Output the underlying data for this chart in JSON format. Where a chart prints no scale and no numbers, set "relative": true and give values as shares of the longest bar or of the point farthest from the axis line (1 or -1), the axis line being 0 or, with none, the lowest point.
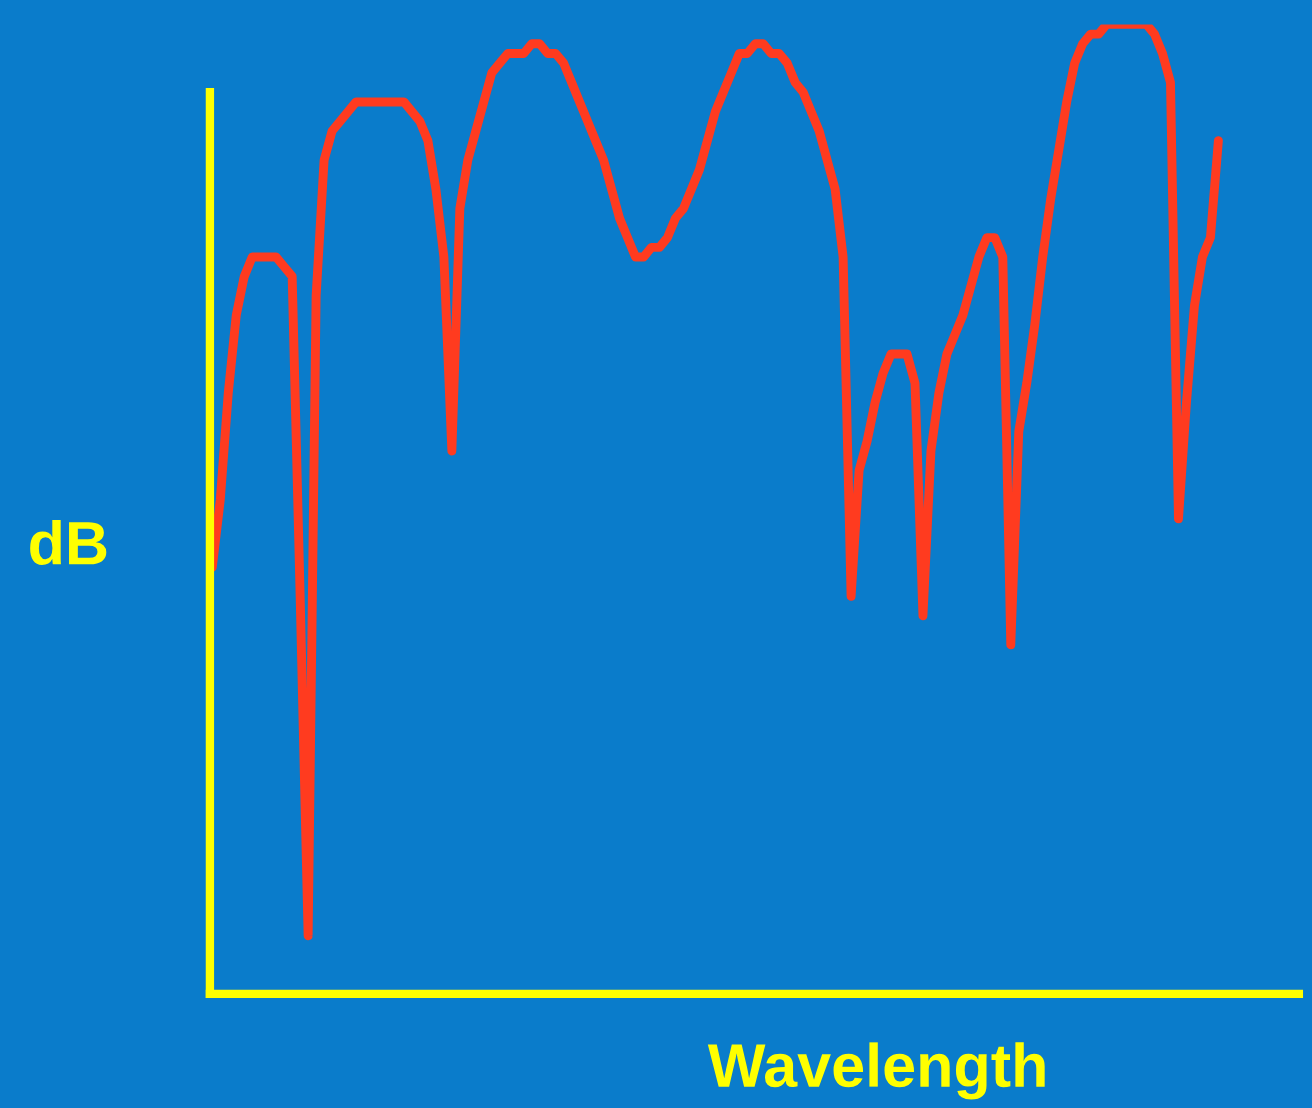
{
  "chart_data": {
    "type": "line",
    "relative": true,
    "xlabel": "Wavelength",
    "ylabel": "dB",
    "categories": [
      null,
      null,
      null,
      null,
      null,
      null,
      null,
      null,
      null,
      null,
      null,
      null,
      null,
      null,
      null,
      null,
      null,
      null,
      null,
      null,
      null,
      null,
      null,
      null,
      null,
      null,
      null,
      null,
      null,
      null,
      null,
      null,
      null,
      null,
      null,
      null,
      null,
      null,
      null,
      null,
      null,
      null,
      null,
      null,
      null,
      null,
      null,
      null,
      null,
      null,
      null,
      null,
      null,
      null,
      null,
      null,
      null,
      null,
      null,
      null,
      null,
      null,
      null,
      null,
      null,
      null,
      null,
      null,
      null,
      null,
      null,
      null,
      null,
      null,
      null,
      null,
      null,
      null,
      null,
      null,
      null,
      null,
      null,
      null,
      null,
      null,
      null,
      null,
      null,
      null,
      null,
      null,
      null,
      null,
      null,
      null,
      null,
      null,
      null,
      null,
      null,
      null,
      null,
      null,
      null,
      null,
      null,
      null,
      null,
      null,
      null,
      null,
      null,
      null,
      null,
      null,
      null,
      null,
      null,
      null,
      null,
      null,
      null,
      null,
      null,
      null,
      null
    ],
    "series": [
      {
        "color": "#ff3b1f",
        "values": [
          0.44,
          0.51,
          0.62,
          0.7,
          0.74,
          0.76,
          0.76,
          0.76,
          0.76,
          0.75,
          0.74,
          0.41,
          0.06,
          0.72,
          0.86,
          0.89,
          0.9,
          0.91,
          0.92,
          0.92,
          0.92,
          0.92,
          0.92,
          0.92,
          0.92,
          0.91,
          0.9,
          0.88,
          0.83,
          0.76,
          0.56,
          0.81,
          0.86,
          0.89,
          0.92,
          0.95,
          0.96,
          0.97,
          0.97,
          0.97,
          0.98,
          0.98,
          0.97,
          0.97,
          0.96,
          0.94,
          0.92,
          0.9,
          0.88,
          0.86,
          0.83,
          0.8,
          0.78,
          0.76,
          0.76,
          0.77,
          0.77,
          0.78,
          0.8,
          0.81,
          0.83,
          0.85,
          0.88,
          0.91,
          0.93,
          0.95,
          0.97,
          0.97,
          0.98,
          0.98,
          0.97,
          0.97,
          0.96,
          0.94,
          0.93,
          0.91,
          0.89,
          0.86,
          0.83,
          0.76,
          0.41,
          0.54,
          0.57,
          0.61,
          0.64,
          0.66,
          0.66,
          0.66,
          0.63,
          0.39,
          0.56,
          0.62,
          0.66,
          0.68,
          0.7,
          0.73,
          0.76,
          0.78,
          0.78,
          0.76,
          0.36,
          0.58,
          0.63,
          0.69,
          0.76,
          0.82,
          0.87,
          0.92,
          0.96,
          0.98,
          0.99,
          0.99,
          1.0,
          1.0,
          1.0,
          1.0,
          1.0,
          1.0,
          0.99,
          0.97,
          0.94,
          0.49,
          0.61,
          0.71,
          0.76,
          0.78,
          0.88
        ]
      }
    ],
    "grid": false,
    "legend": false
  }
}
